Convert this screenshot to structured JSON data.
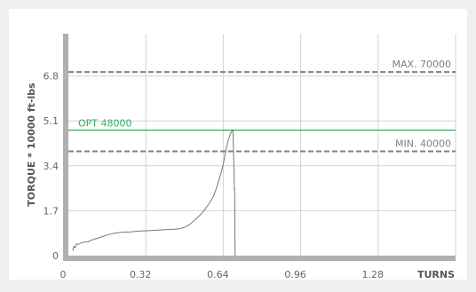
{
  "chart_data": {
    "type": "line",
    "xlabel": "TURNS",
    "ylabel": "TORQUE * 10000 ft-lbs",
    "xlim": [
      0,
      1.6
    ],
    "ylim": [
      0,
      8.4
    ],
    "x_ticks": [
      0,
      0.32,
      0.64,
      0.96,
      1.28
    ],
    "x_tick_labels": [
      "0",
      "0.32",
      "0.64",
      "0.96",
      "1.28"
    ],
    "y_ticks": [
      0,
      1.7,
      3.4,
      5.1,
      6.8
    ],
    "y_tick_labels": [
      "0",
      "1.7",
      "3.4",
      "5.1",
      "6.8"
    ],
    "grid": true,
    "series": [
      {
        "color": "#777777",
        "x": [
          0.018,
          0.022,
          0.028,
          0.034,
          0.04,
          0.05,
          0.06,
          0.08,
          0.1,
          0.12,
          0.14,
          0.16,
          0.18,
          0.2,
          0.22,
          0.24,
          0.26,
          0.28,
          0.3,
          0.32,
          0.34,
          0.36,
          0.38,
          0.4,
          0.42,
          0.44,
          0.46,
          0.48,
          0.5,
          0.52,
          0.54,
          0.56,
          0.58,
          0.6,
          0.61,
          0.62,
          0.63,
          0.64,
          0.645,
          0.65,
          0.655,
          0.66,
          0.665,
          0.67,
          0.675,
          0.68,
          0.682,
          0.684,
          0.686,
          0.687,
          0.688,
          0.688,
          0.689
        ],
        "y": [
          0.18,
          0.35,
          0.3,
          0.45,
          0.42,
          0.47,
          0.5,
          0.52,
          0.6,
          0.66,
          0.72,
          0.78,
          0.83,
          0.86,
          0.88,
          0.89,
          0.9,
          0.92,
          0.93,
          0.94,
          0.95,
          0.96,
          0.97,
          0.98,
          0.99,
          1.0,
          1.02,
          1.07,
          1.17,
          1.33,
          1.5,
          1.7,
          1.95,
          2.25,
          2.5,
          2.8,
          3.1,
          3.45,
          3.7,
          3.95,
          4.15,
          4.35,
          4.5,
          4.62,
          4.7,
          4.76,
          4.2,
          3.3,
          2.5,
          2.55,
          1.6,
          0.7,
          0
        ]
      }
    ],
    "reference_lines": [
      {
        "label": "MAX. 70000",
        "value": 6.95,
        "style": "dashed",
        "color": "#808080",
        "label_position": "right"
      },
      {
        "label": "OPT 48000",
        "value": 4.75,
        "style": "solid",
        "color": "#2fae5a",
        "label_position": "left"
      },
      {
        "label": "MIN. 40000",
        "value": 3.95,
        "style": "dashed",
        "color": "#808080",
        "label_position": "right"
      }
    ]
  }
}
